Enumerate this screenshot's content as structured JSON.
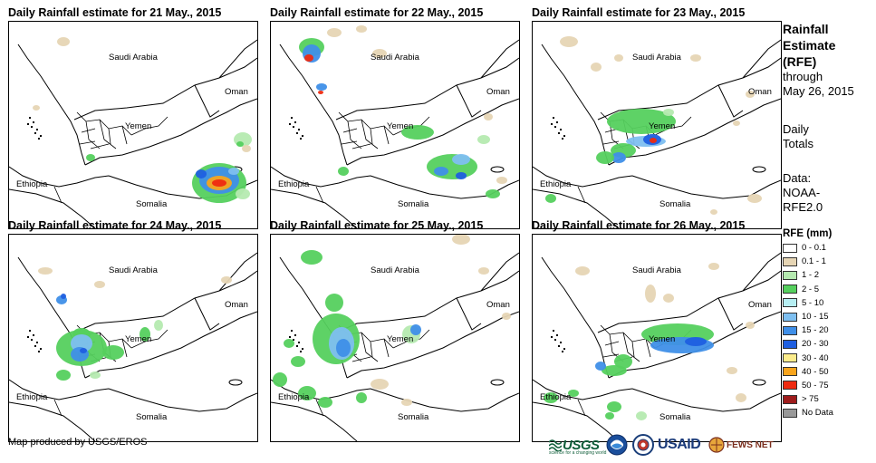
{
  "panels": [
    {
      "title": "Daily Rainfall estimate for 21 May., 2015"
    },
    {
      "title": "Daily Rainfall estimate for 22 May., 2015"
    },
    {
      "title": "Daily Rainfall estimate for 23 May., 2015"
    },
    {
      "title": "Daily Rainfall estimate for 24 May., 2015"
    },
    {
      "title": "Daily Rainfall estimate for 25 May., 2015"
    },
    {
      "title": "Daily Rainfall estimate for 26 May., 2015"
    }
  ],
  "map_labels": {
    "saudi": "Saudi Arabia",
    "oman": "Oman",
    "yemen": "Yemen",
    "ethiopia": "Ethiopia",
    "somalia": "Somalia"
  },
  "sidebar": {
    "heading_1": "Rainfall",
    "heading_2": "Estimate",
    "heading_3": "(RFE)",
    "through": "through",
    "date": "May 26, 2015",
    "daily_1": "Daily",
    "daily_2": "Totals",
    "data_1": "Data:",
    "data_2": "NOAA-",
    "data_3": "RFE2.0"
  },
  "legend": {
    "title": "RFE (mm)",
    "items": [
      {
        "label": "0 - 0.1",
        "color": "#ffffff"
      },
      {
        "label": "0.1 - 1",
        "color": "#e6d5b4"
      },
      {
        "label": "1 - 2",
        "color": "#b5eab0"
      },
      {
        "label": "2 - 5",
        "color": "#55d05e"
      },
      {
        "label": "5 - 10",
        "color": "#b6eef2"
      },
      {
        "label": "10 - 15",
        "color": "#7ebff0"
      },
      {
        "label": "15 - 20",
        "color": "#3f8fe8"
      },
      {
        "label": "20 - 30",
        "color": "#1f5fe0"
      },
      {
        "label": "30 - 40",
        "color": "#fcec8c"
      },
      {
        "label": "40 - 50",
        "color": "#f8a41c"
      },
      {
        "label": "50 - 75",
        "color": "#ee2a10"
      },
      {
        "label": "> 75",
        "color": "#9e1c1c"
      },
      {
        "label": "No Data",
        "color": "#999999"
      }
    ]
  },
  "footer": {
    "credit": "Map produced by USGS/EROS",
    "usgs": "USGS",
    "usgs_tagline": "science for a changing world",
    "usaid": "USAID",
    "fews": "FEWS NET"
  }
}
